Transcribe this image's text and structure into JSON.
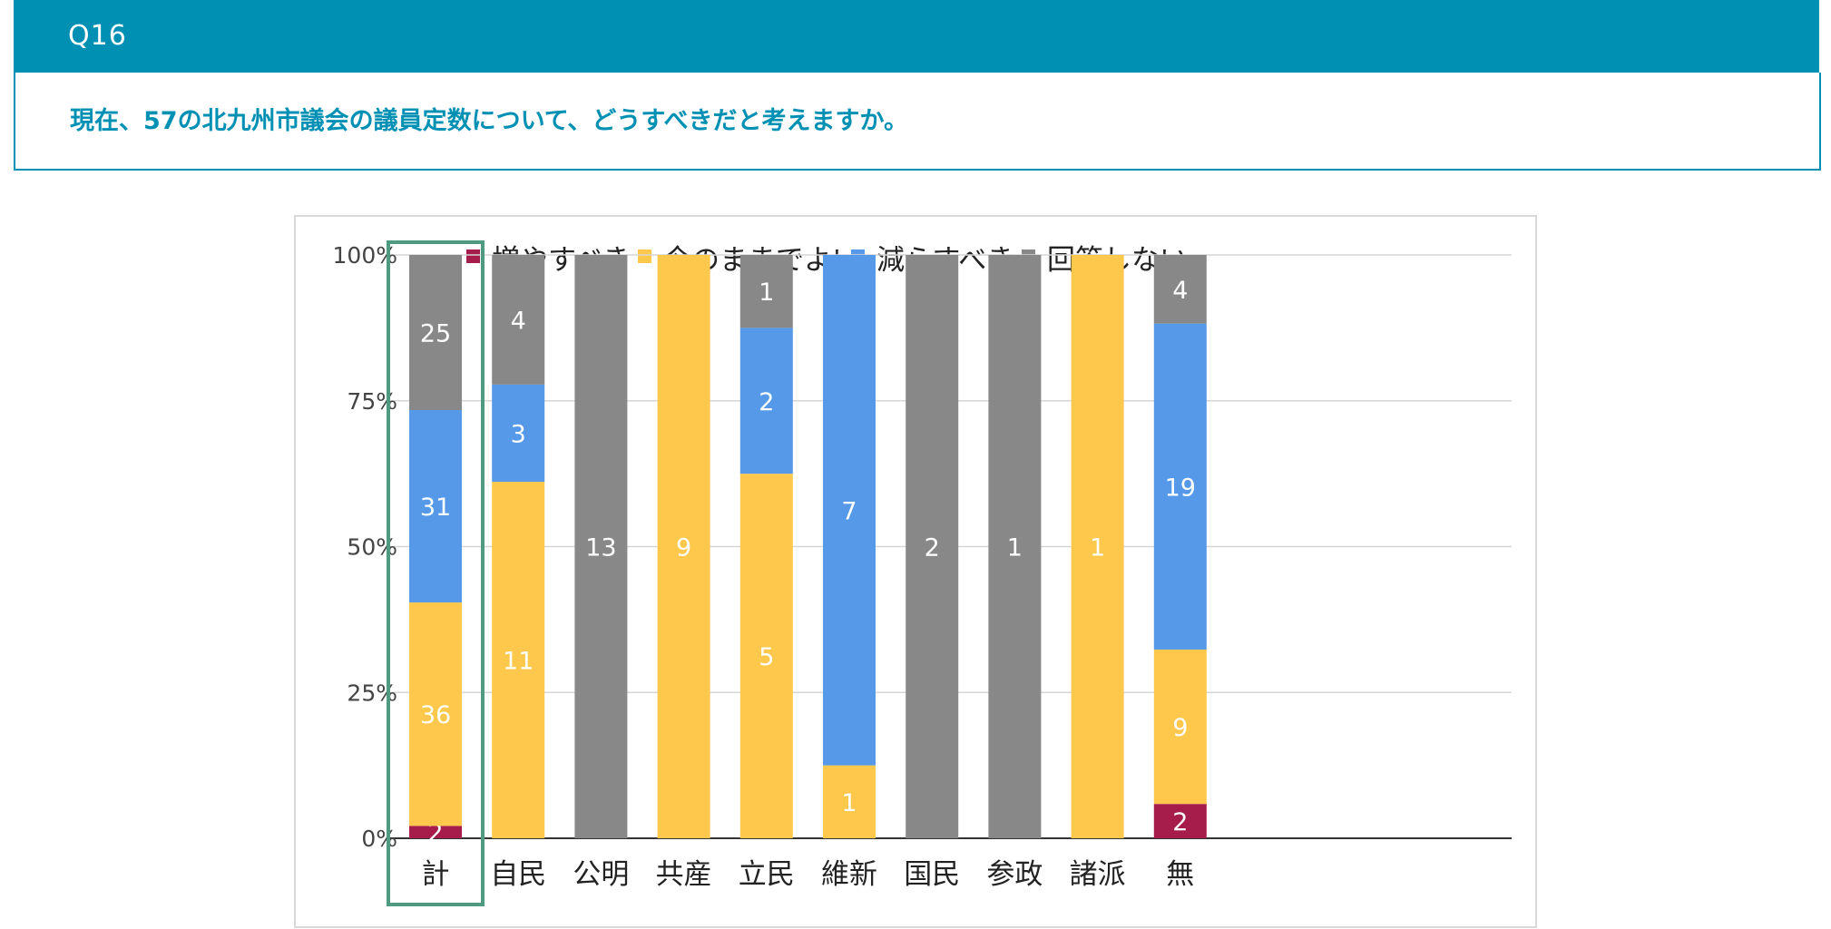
{
  "question": {
    "number": "Q16",
    "text": "現在、57の北九州市議会の議員定数について、どうすべきだと考えますか。"
  },
  "chart_data": {
    "type": "bar",
    "stacked": "percent",
    "title": "",
    "xlabel": "",
    "ylabel": "",
    "ylim": [
      0,
      100
    ],
    "yticks": [
      "0%",
      "25%",
      "50%",
      "75%",
      "100%"
    ],
    "legend_position": "top",
    "grid": true,
    "highlight_category": "計",
    "categories": [
      "計",
      "自民",
      "公明",
      "共産",
      "立民",
      "維新",
      "国民",
      "参政",
      "諸派",
      "無"
    ],
    "series": [
      {
        "name": "増やすべき",
        "color": "#a61d4b",
        "values": [
          2,
          0,
          0,
          0,
          0,
          0,
          0,
          0,
          0,
          2
        ]
      },
      {
        "name": "今のままでよい",
        "color": "#fdc84b",
        "values": [
          36,
          11,
          0,
          9,
          5,
          1,
          0,
          0,
          1,
          9
        ]
      },
      {
        "name": "減らすべき",
        "color": "#5599e8",
        "values": [
          31,
          3,
          0,
          0,
          2,
          7,
          0,
          0,
          0,
          19
        ]
      },
      {
        "name": "回答しない",
        "color": "#888888",
        "values": [
          25,
          4,
          13,
          0,
          1,
          0,
          2,
          1,
          0,
          4
        ]
      }
    ],
    "highlight_color": "#4e9b82",
    "grid_color": "#d6d6d6"
  }
}
